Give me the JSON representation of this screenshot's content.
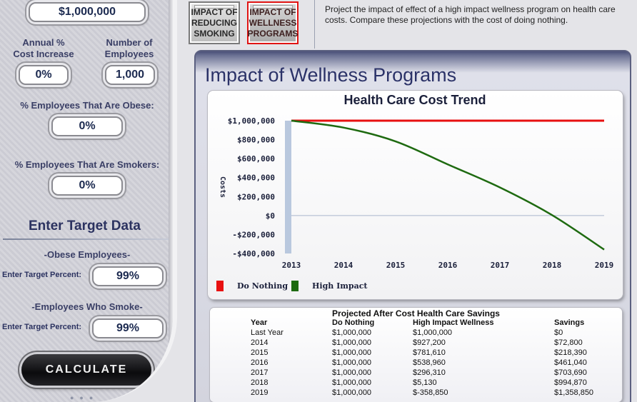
{
  "inputs": {
    "current_cost": "$1,000,000",
    "annual_cost_increase_label": "Annual %\nCost Increase",
    "annual_cost_increase_line1": "Annual %",
    "annual_cost_increase_line2": "Cost Increase",
    "annual_cost_increase": "0%",
    "num_employees_line1": "Number of",
    "num_employees_line2": "Employees",
    "num_employees": "1,000",
    "obese_label": "% Employees That Are Obese:",
    "obese": "0%",
    "smokers_label": "% Employees That Are Smokers:",
    "smokers": "0%"
  },
  "target": {
    "title": "Enter Target Data",
    "obese_heading": "-Obese Employees-",
    "smoke_heading": "-Employees Who Smoke-",
    "target_percent_label": "Enter Target Percent:",
    "obese_target": "99%",
    "smoke_target": "99%"
  },
  "calculate_label": "CALCULATE",
  "tabs": [
    {
      "label_lines": [
        "IMPACT OF",
        "REDUCING",
        "SMOKING"
      ],
      "active": false
    },
    {
      "label_lines": [
        "IMPACT OF",
        "WELLNESS",
        "PROGRAMS"
      ],
      "active": true
    }
  ],
  "description": "Project the impact of effect of a high impact wellness program on health care costs. Compare these projections with the cost of doing nothing.",
  "main_title": "Impact of Wellness Programs",
  "colors": {
    "do_nothing": "#e81010",
    "high_impact": "#1e6a10",
    "accent": "#2b3268"
  },
  "chart_data": {
    "type": "line",
    "title": "Health Care Cost Trend",
    "ylabel": "Costs",
    "xlabel": "",
    "x": [
      2013,
      2014,
      2015,
      2016,
      2017,
      2018,
      2019
    ],
    "ylim": [
      -400000,
      1000000
    ],
    "y_ticks": [
      1000000,
      800000,
      600000,
      400000,
      200000,
      0,
      -200000,
      -400000
    ],
    "y_tick_labels": [
      "$1,000,000",
      "$800,000",
      "$600,000",
      "$400,000",
      "$200,000",
      "$0",
      "-$200,000",
      "-$400,000"
    ],
    "x_tick_labels": [
      "2013",
      "2014",
      "2015",
      "2016",
      "2017",
      "2018",
      "2019"
    ],
    "legend_position": "bottom-left",
    "grid": false,
    "series": [
      {
        "name": "Do Nothing",
        "values": [
          1000000,
          1000000,
          1000000,
          1000000,
          1000000,
          1000000,
          1000000
        ]
      },
      {
        "name": "High Impact",
        "values": [
          1000000,
          927200,
          781610,
          538960,
          296310,
          5130,
          -358850
        ]
      }
    ]
  },
  "table": {
    "title": "Projected After Cost Health Care Savings",
    "headers": [
      "Year",
      "Do Nothing",
      "High Impact Wellness",
      "Savings"
    ],
    "rows": [
      [
        "Last Year",
        "$1,000,000",
        "$1,000,000",
        "$0"
      ],
      [
        "2014",
        "$1,000,000",
        "$927,200",
        "$72,800"
      ],
      [
        "2015",
        "$1,000,000",
        "$781,610",
        "$218,390"
      ],
      [
        "2016",
        "$1,000,000",
        "$538,960",
        "$461,040"
      ],
      [
        "2017",
        "$1,000,000",
        "$296,310",
        "$703,690"
      ],
      [
        "2018",
        "$1,000,000",
        "$5,130",
        "$994,870"
      ],
      [
        "2019",
        "$1,000,000",
        "$-358,850",
        "$1,358,850"
      ]
    ]
  }
}
